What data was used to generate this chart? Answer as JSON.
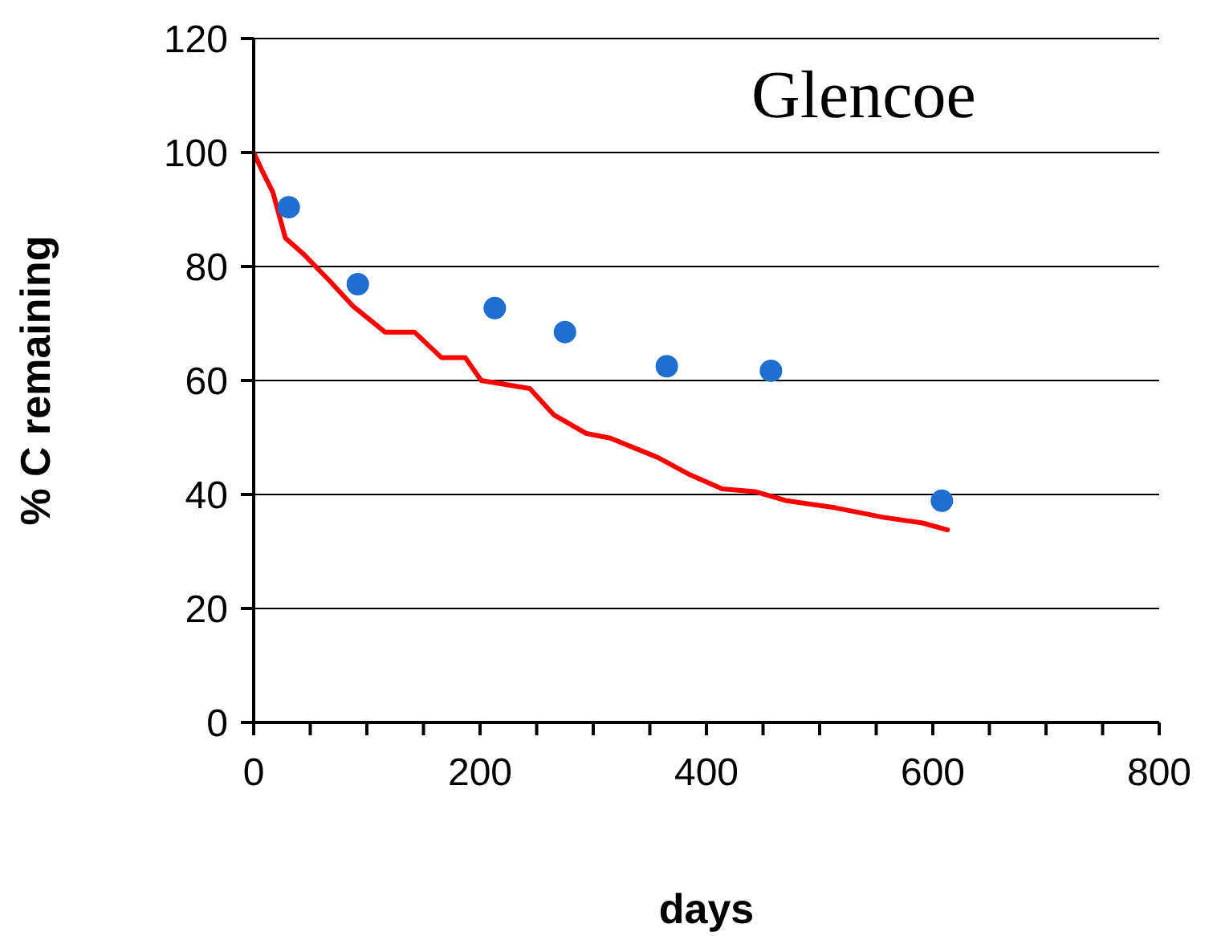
{
  "chart_data": {
    "type": "scatter",
    "title": "Glencoe",
    "xlabel": "days",
    "ylabel": "% C remaining",
    "xlim": [
      0,
      800
    ],
    "xticks": [
      0,
      {
        "value": 50,
        "label": null
      },
      {
        "value": 100,
        "label": null
      },
      {
        "value": 150,
        "label": null
      },
      200,
      {
        "value": 250,
        "label": null
      },
      {
        "value": 300,
        "label": null
      },
      {
        "value": 350,
        "label": null
      },
      400,
      {
        "value": 450,
        "label": null
      },
      {
        "value": 500,
        "label": null
      },
      {
        "value": 550,
        "label": null
      },
      600,
      {
        "value": 650,
        "label": null
      },
      {
        "value": 700,
        "label": null
      },
      {
        "value": 750,
        "label": null
      },
      800
    ],
    "ylim": [
      0,
      120
    ],
    "yticks": [
      0,
      20,
      40,
      60,
      80,
      100,
      120
    ],
    "grid": "y",
    "series": [
      {
        "color": "#1f6fd1",
        "marker": "circle",
        "x": [
          31,
          92,
          213,
          275,
          365,
          457,
          608
        ],
        "values": [
          90.4,
          76.9,
          72.7,
          68.5,
          62.5,
          61.7,
          38.9
        ]
      },
      {
        "type": "line",
        "color": "#ff0000",
        "marker": "none",
        "line_style": "solid",
        "x": [
          0,
          7,
          17,
          28,
          45,
          67,
          88,
          116,
          142,
          166,
          187,
          201,
          244,
          265,
          294,
          315,
          357,
          386,
          414,
          443,
          471,
          513,
          556,
          591,
          613
        ],
        "values": [
          100,
          97,
          93,
          85,
          82,
          77.5,
          73,
          68.5,
          68.5,
          64,
          64,
          60,
          58.6,
          54,
          50.7,
          49.9,
          46.5,
          43.4,
          41,
          40.5,
          38.9,
          37.7,
          36,
          35,
          33.8
        ]
      }
    ]
  }
}
